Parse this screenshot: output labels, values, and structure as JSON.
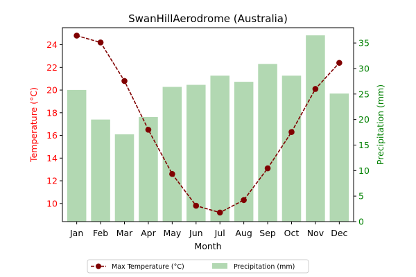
{
  "chart_data": {
    "type": "bar+line",
    "title": "SwanHillAerodrome (Australia)",
    "xlabel": "Month",
    "ylabel_left": "Temperature (°C)",
    "ylabel_right": "Precipitation (mm)",
    "categories": [
      "Jan",
      "Feb",
      "Mar",
      "Apr",
      "May",
      "Jun",
      "Jul",
      "Aug",
      "Sep",
      "Oct",
      "Nov",
      "Dec"
    ],
    "ylim_left": [
      8.4,
      25.5
    ],
    "ylim_right": [
      0,
      38
    ],
    "yticks_left": [
      10,
      12,
      14,
      16,
      18,
      20,
      22,
      24
    ],
    "yticks_right": [
      0,
      5,
      10,
      15,
      20,
      25,
      30,
      35
    ],
    "grid": false,
    "legend_placement": "bottom-center",
    "series": [
      {
        "name": "Max Temperature (°C)",
        "kind": "line",
        "axis": "left",
        "color": "#800000",
        "values": [
          24.8,
          24.2,
          20.8,
          16.5,
          12.6,
          9.8,
          9.2,
          10.3,
          13.1,
          16.3,
          20.1,
          22.4
        ]
      },
      {
        "name": "Precipitation (mm)",
        "kind": "bar",
        "axis": "right",
        "color": "#b2d8b2",
        "values": [
          25.8,
          20.0,
          17.1,
          20.5,
          26.4,
          26.8,
          28.6,
          27.4,
          30.9,
          28.6,
          36.5,
          25.1
        ]
      }
    ],
    "colors": {
      "left_axis": "#ff0000",
      "right_axis": "#008000"
    }
  }
}
